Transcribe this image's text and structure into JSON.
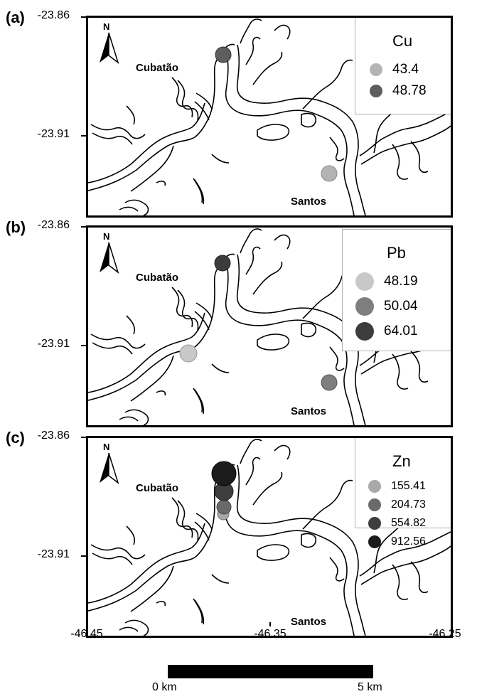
{
  "panels": [
    {
      "letter": "(a)",
      "lat_top": "-23.86",
      "lat_mid": "-23.91",
      "cities": {
        "cubatao": "Cubatão",
        "santos": "Santos"
      },
      "north_label": "N",
      "legend": {
        "title": "Cu",
        "entries": [
          {
            "label": "43.4",
            "color": "#b4b4b4"
          },
          {
            "label": "48.78",
            "color": "#5e5e5e"
          }
        ]
      }
    },
    {
      "letter": "(b)",
      "lat_top": "-23.86",
      "lat_mid": "-23.91",
      "cities": {
        "cubatao": "Cubatão",
        "santos": "Santos"
      },
      "north_label": "N",
      "legend": {
        "title": "Pb",
        "entries": [
          {
            "label": "48.19",
            "color": "#c8c8c8"
          },
          {
            "label": "50.04",
            "color": "#7e7e7e"
          },
          {
            "label": "64.01",
            "color": "#3c3c3c"
          }
        ]
      }
    },
    {
      "letter": "(c)",
      "lat_top": "-23.86",
      "lat_mid": "-23.91",
      "cities": {
        "cubatao": "Cubatão",
        "santos": "Santos"
      },
      "north_label": "N",
      "legend": {
        "title": "Zn",
        "entries": [
          {
            "label": "155.41",
            "color": "#a8a8a8"
          },
          {
            "label": "204.73",
            "color": "#6a6a6a"
          },
          {
            "label": "554.82",
            "color": "#3e3e3e"
          },
          {
            "label": "912.56",
            "color": "#1c1c1c"
          }
        ]
      }
    }
  ],
  "longitude_labels": [
    "-46.45",
    "-46.35",
    "-46.25"
  ],
  "scale": {
    "start": "0 km",
    "end": "5 km"
  }
}
